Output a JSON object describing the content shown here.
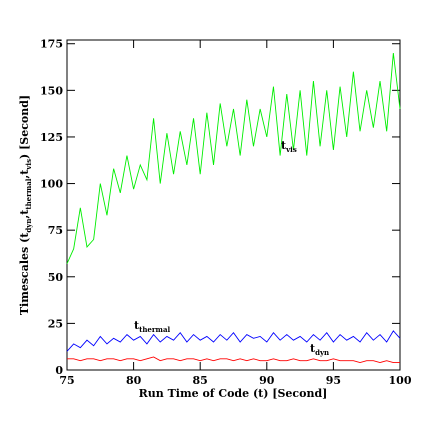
{
  "chart_data": {
    "type": "line",
    "xlabel": "Run Time of Code (t) [Second]",
    "ylabel": [
      {
        "text": "Timescales (t"
      },
      {
        "text": "dyn",
        "sub": true
      },
      {
        "text": ",t"
      },
      {
        "text": "thermal",
        "sub": true
      },
      {
        "text": ",t"
      },
      {
        "text": "vis",
        "sub": true
      },
      {
        "text": ") [Second]"
      }
    ],
    "x": [
      75,
      75.5,
      76,
      76.5,
      77,
      77.5,
      78,
      78.5,
      79,
      79.5,
      80,
      80.5,
      81,
      81.5,
      82,
      82.5,
      83,
      83.5,
      84,
      84.5,
      85,
      85.5,
      86,
      86.5,
      87,
      87.5,
      88,
      88.5,
      89,
      89.5,
      90,
      90.5,
      91,
      91.5,
      92,
      92.5,
      93,
      93.5,
      94,
      94.5,
      95,
      95.5,
      96,
      96.5,
      97,
      97.5,
      98,
      98.5,
      99,
      99.5,
      100
    ],
    "series": [
      {
        "color": "#00ee00",
        "values": [
          57,
          65,
          87,
          66,
          70,
          100,
          83,
          108,
          95,
          115,
          97,
          110,
          102,
          135,
          100,
          127,
          105,
          128,
          110,
          135,
          105,
          138,
          110,
          143,
          120,
          140,
          115,
          145,
          120,
          140,
          125,
          152,
          115,
          148,
          118,
          150,
          115,
          155,
          120,
          150,
          118,
          152,
          125,
          160,
          128,
          150,
          130,
          155,
          128,
          170,
          140
        ]
      },
      {
        "color": "#0000ff",
        "values": [
          10,
          14,
          12,
          16,
          13,
          18,
          14,
          17,
          15,
          19,
          16,
          18,
          14,
          19,
          15,
          18,
          16,
          20,
          15,
          19,
          16,
          18,
          15,
          19,
          16,
          20,
          15,
          19,
          17,
          18,
          15,
          20,
          16,
          19,
          16,
          18,
          15,
          19,
          16,
          20,
          15,
          19,
          16,
          18,
          15,
          20,
          16,
          19,
          15,
          21,
          17
        ]
      },
      {
        "color": "#ff0000",
        "values": [
          6,
          6,
          5,
          6,
          6,
          5,
          6,
          6,
          5,
          6,
          6,
          5,
          6,
          7,
          5,
          6,
          6,
          5,
          6,
          6,
          5,
          6,
          5,
          6,
          6,
          5,
          6,
          5,
          6,
          5,
          5,
          6,
          5,
          5,
          6,
          5,
          5,
          6,
          5,
          5,
          6,
          5,
          5,
          5,
          4,
          5,
          5,
          4,
          5,
          4,
          4
        ]
      }
    ],
    "annotations": [
      {
        "text": "t",
        "sub": "vis"
      },
      {
        "text": "t",
        "sub": "thermal"
      },
      {
        "text": "t",
        "sub": "dyn"
      }
    ],
    "xlim": [
      75,
      100
    ],
    "xticks": [
      75,
      80,
      85,
      90,
      95,
      100
    ],
    "ylim": [
      0,
      177
    ],
    "yticks": [
      0,
      25,
      50,
      75,
      100,
      125,
      150,
      175
    ]
  }
}
